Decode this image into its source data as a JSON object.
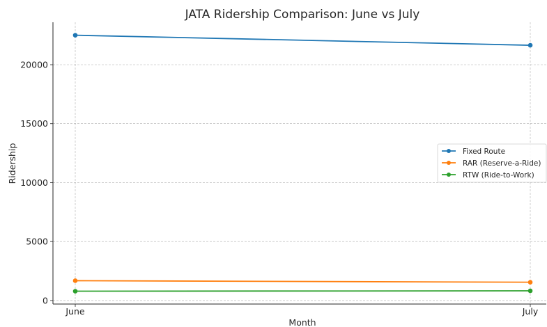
{
  "chart_data": {
    "type": "line",
    "title": "JATA Ridership Comparison: June vs July",
    "xlabel": "Month",
    "ylabel": "Ridership",
    "categories": [
      "June",
      "July"
    ],
    "ylim": [
      -300,
      23600
    ],
    "yticks": [
      0,
      5000,
      10000,
      15000,
      20000
    ],
    "grid": true,
    "legend_position": "center-right",
    "series": [
      {
        "name": "Fixed Route",
        "color": "#1f77b4",
        "values": [
          22500,
          21650
        ]
      },
      {
        "name": "RAR (Reserve-a-Ride)",
        "color": "#ff7f0e",
        "values": [
          1680,
          1550
        ]
      },
      {
        "name": "RTW (Ride-to-Work)",
        "color": "#2ca02c",
        "values": [
          790,
          820
        ]
      }
    ]
  }
}
